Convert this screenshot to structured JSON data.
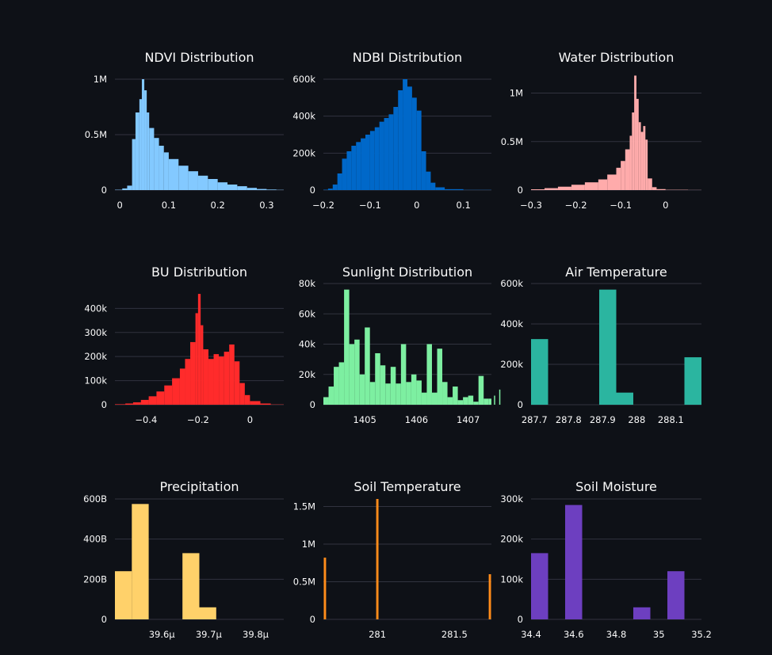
{
  "background": "#0e1117",
  "grid_color": "#31333f",
  "chart_data": [
    {
      "id": "ndvi",
      "type": "histogram",
      "title": "NDVI Distribution",
      "color": "#83c9ff",
      "xrange": [
        -0.01,
        0.335
      ],
      "ylim": [
        0,
        1050000
      ],
      "xticks": [
        {
          "v": 0,
          "label": "0"
        },
        {
          "v": 0.1,
          "label": "0.1"
        },
        {
          "v": 0.2,
          "label": "0.2"
        },
        {
          "v": 0.3,
          "label": "0.3"
        }
      ],
      "yticks": [
        {
          "v": 0,
          "label": "0"
        },
        {
          "v": 500000,
          "label": "0.5M"
        },
        {
          "v": 1000000,
          "label": "1M"
        }
      ],
      "bin_edges": [
        -0.01,
        0.005,
        0.015,
        0.025,
        0.032,
        0.04,
        0.045,
        0.05,
        0.055,
        0.06,
        0.07,
        0.08,
        0.09,
        0.1,
        0.12,
        0.14,
        0.16,
        0.18,
        0.2,
        0.22,
        0.24,
        0.26,
        0.28,
        0.3,
        0.32,
        0.335
      ],
      "counts": [
        3000,
        15000,
        40000,
        460000,
        700000,
        820000,
        1000000,
        900000,
        700000,
        560000,
        470000,
        400000,
        340000,
        280000,
        220000,
        170000,
        130000,
        100000,
        70000,
        50000,
        35000,
        20000,
        10000,
        5000,
        2000
      ]
    },
    {
      "id": "ndbi",
      "type": "histogram",
      "title": "NDBI Distribution",
      "color": "#0068c9",
      "xrange": [
        -0.2,
        0.16
      ],
      "ylim": [
        0,
        630000
      ],
      "xticks": [
        {
          "v": -0.2,
          "label": "−0.2"
        },
        {
          "v": -0.1,
          "label": "−0.1"
        },
        {
          "v": 0,
          "label": "0"
        },
        {
          "v": 0.1,
          "label": "0.1"
        }
      ],
      "yticks": [
        {
          "v": 0,
          "label": "0"
        },
        {
          "v": 200000,
          "label": "200k"
        },
        {
          "v": 400000,
          "label": "400k"
        },
        {
          "v": 600000,
          "label": "600k"
        }
      ],
      "bin_edges": [
        -0.2,
        -0.19,
        -0.18,
        -0.17,
        -0.16,
        -0.15,
        -0.14,
        -0.13,
        -0.12,
        -0.11,
        -0.1,
        -0.09,
        -0.08,
        -0.07,
        -0.06,
        -0.05,
        -0.04,
        -0.03,
        -0.02,
        -0.01,
        0,
        0.01,
        0.02,
        0.03,
        0.04,
        0.06,
        0.1,
        0.16
      ],
      "counts": [
        2000,
        8000,
        30000,
        90000,
        170000,
        210000,
        240000,
        260000,
        280000,
        300000,
        320000,
        340000,
        370000,
        390000,
        410000,
        450000,
        540000,
        600000,
        560000,
        500000,
        430000,
        210000,
        100000,
        40000,
        15000,
        5000,
        1000
      ]
    },
    {
      "id": "water",
      "type": "histogram",
      "title": "Water Distribution",
      "color": "#ffabab",
      "xrange": [
        -0.3,
        0.08
      ],
      "ylim": [
        0,
        1200000
      ],
      "xticks": [
        {
          "v": -0.3,
          "label": "−0.3"
        },
        {
          "v": -0.2,
          "label": "−0.2"
        },
        {
          "v": -0.1,
          "label": "−0.1"
        },
        {
          "v": 0,
          "label": "0"
        }
      ],
      "yticks": [
        {
          "v": 0,
          "label": "0"
        },
        {
          "v": 500000,
          "label": "0.5M"
        },
        {
          "v": 1000000,
          "label": "1M"
        }
      ],
      "bin_edges": [
        -0.3,
        -0.27,
        -0.24,
        -0.21,
        -0.18,
        -0.15,
        -0.13,
        -0.11,
        -0.1,
        -0.09,
        -0.08,
        -0.075,
        -0.07,
        -0.065,
        -0.06,
        -0.055,
        -0.05,
        -0.045,
        -0.04,
        -0.03,
        -0.02,
        0,
        0.05,
        0.08
      ],
      "counts": [
        8000,
        20000,
        35000,
        55000,
        80000,
        110000,
        160000,
        230000,
        300000,
        420000,
        560000,
        800000,
        1180000,
        940000,
        700000,
        600000,
        660000,
        520000,
        120000,
        30000,
        10000,
        3000,
        1000
      ]
    },
    {
      "id": "bu",
      "type": "histogram",
      "title": "BU Distribution",
      "color": "#ff2b2b",
      "xrange": [
        -0.52,
        0.13
      ],
      "ylim": [
        0,
        480000
      ],
      "xticks": [
        {
          "v": -0.4,
          "label": "−0.4"
        },
        {
          "v": -0.2,
          "label": "−0.2"
        },
        {
          "v": 0,
          "label": "0"
        }
      ],
      "yticks": [
        {
          "v": 0,
          "label": "0"
        },
        {
          "v": 100000,
          "label": "100k"
        },
        {
          "v": 200000,
          "label": "200k"
        },
        {
          "v": 300000,
          "label": "300k"
        },
        {
          "v": 400000,
          "label": "400k"
        }
      ],
      "bin_edges": [
        -0.52,
        -0.48,
        -0.45,
        -0.42,
        -0.39,
        -0.36,
        -0.33,
        -0.3,
        -0.27,
        -0.25,
        -0.23,
        -0.21,
        -0.2,
        -0.19,
        -0.18,
        -0.16,
        -0.14,
        -0.12,
        -0.1,
        -0.08,
        -0.06,
        -0.04,
        -0.02,
        0,
        0.04,
        0.08,
        0.13
      ],
      "counts": [
        2000,
        5000,
        10000,
        20000,
        35000,
        55000,
        80000,
        110000,
        150000,
        190000,
        260000,
        380000,
        460000,
        330000,
        230000,
        190000,
        210000,
        200000,
        220000,
        250000,
        180000,
        90000,
        40000,
        15000,
        5000,
        1000
      ]
    },
    {
      "id": "sunlight",
      "type": "histogram",
      "title": "Sunlight Distribution",
      "color": "#7defa1",
      "xrange": [
        1404.2,
        1407.45
      ],
      "ylim": [
        0,
        80000
      ],
      "xticks": [
        {
          "v": 1405,
          "label": "1405"
        },
        {
          "v": 1406,
          "label": "1406"
        },
        {
          "v": 1407,
          "label": "1407"
        }
      ],
      "yticks": [
        {
          "v": 0,
          "label": "0"
        },
        {
          "v": 20000,
          "label": "20k"
        },
        {
          "v": 40000,
          "label": "40k"
        },
        {
          "v": 60000,
          "label": "60k"
        },
        {
          "v": 80000,
          "label": "80k"
        }
      ],
      "bin_start": 1404.2,
      "bin_width": 0.1,
      "counts": [
        5000,
        12000,
        25000,
        28000,
        76000,
        40000,
        43000,
        20000,
        51000,
        15000,
        34000,
        26000,
        14000,
        25000,
        14000,
        40000,
        15000,
        20000,
        16000,
        8000,
        40000,
        8000,
        37000,
        15000,
        5000,
        12000,
        3000,
        5000,
        6000,
        2000,
        19000,
        4000,
        4000,
        6000,
        10000
      ]
    },
    {
      "id": "airtemp",
      "type": "histogram",
      "title": "Air Temperature",
      "color": "#2bb5a0",
      "xrange": [
        287.69,
        288.19
      ],
      "ylim": [
        0,
        600000
      ],
      "xticks": [
        {
          "v": 287.7,
          "label": "287.7"
        },
        {
          "v": 287.8,
          "label": "287.8"
        },
        {
          "v": 287.9,
          "label": "287.9"
        },
        {
          "v": 288,
          "label": "288"
        },
        {
          "v": 288.1,
          "label": "288.1"
        }
      ],
      "yticks": [
        {
          "v": 0,
          "label": "0"
        },
        {
          "v": 200000,
          "label": "200k"
        },
        {
          "v": 400000,
          "label": "400k"
        },
        {
          "v": 600000,
          "label": "600k"
        }
      ],
      "bin_start": 287.69,
      "bin_width": 0.05,
      "counts": [
        325000,
        0,
        0,
        0,
        570000,
        60000,
        0,
        0,
        0,
        235000
      ]
    },
    {
      "id": "precip",
      "type": "histogram",
      "title": "Precipitation",
      "color": "#ffd16a",
      "xrange": [
        39.5,
        39.86
      ],
      "ylim": [
        0,
        600
      ],
      "xticks": [
        {
          "v": 39.6,
          "label": "39.6μ"
        },
        {
          "v": 39.7,
          "label": "39.7μ"
        },
        {
          "v": 39.8,
          "label": "39.8μ"
        }
      ],
      "yticks": [
        {
          "v": 0,
          "label": "0"
        },
        {
          "v": 200,
          "label": "200B"
        },
        {
          "v": 400,
          "label": "400B"
        },
        {
          "v": 600,
          "label": "600B"
        }
      ],
      "bin_start": 39.5,
      "bin_width": 0.036,
      "counts": [
        240,
        575,
        0,
        0,
        330,
        60
      ]
    },
    {
      "id": "soiltemp",
      "type": "histogram",
      "title": "Soil Temperature",
      "color": "#ff8c1a",
      "xrange": [
        280.65,
        281.74
      ],
      "ylim": [
        0,
        1600000
      ],
      "xticks": [
        {
          "v": 281,
          "label": "281"
        },
        {
          "v": 281.5,
          "label": "281.5"
        }
      ],
      "yticks": [
        {
          "v": 0,
          "label": "0"
        },
        {
          "v": 500000,
          "label": "0.5M"
        },
        {
          "v": 1000000,
          "label": "1M"
        },
        {
          "v": 1500000,
          "label": "1.5M"
        }
      ],
      "bars": [
        {
          "x": 280.66,
          "w": 0.015,
          "v": 820000
        },
        {
          "x": 281.0,
          "w": 0.015,
          "v": 1600000
        },
        {
          "x": 281.73,
          "w": 0.015,
          "v": 600000
        }
      ]
    },
    {
      "id": "soilmoist",
      "type": "histogram",
      "title": "Soil Moisture",
      "color": "#6d3fc0",
      "xrange": [
        34.4,
        35.2
      ],
      "ylim": [
        0,
        300000
      ],
      "xticks": [
        {
          "v": 34.4,
          "label": "34.4"
        },
        {
          "v": 34.6,
          "label": "34.6"
        },
        {
          "v": 34.8,
          "label": "34.8"
        },
        {
          "v": 35,
          "label": "35"
        },
        {
          "v": 35.2,
          "label": "35.2"
        }
      ],
      "yticks": [
        {
          "v": 0,
          "label": "0"
        },
        {
          "v": 100000,
          "label": "100k"
        },
        {
          "v": 200000,
          "label": "200k"
        },
        {
          "v": 300000,
          "label": "300k"
        }
      ],
      "bin_start": 34.4,
      "bin_width": 0.08,
      "counts": [
        165000,
        0,
        285000,
        0,
        0,
        0,
        30000,
        0,
        120000,
        0
      ]
    }
  ]
}
